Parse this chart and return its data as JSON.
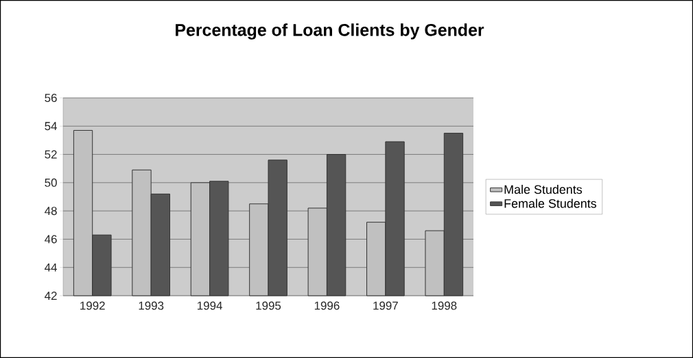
{
  "chart_data": {
    "type": "bar",
    "title": "Percentage of Loan Clients by Gender",
    "categories": [
      "1992",
      "1993",
      "1994",
      "1995",
      "1996",
      "1997",
      "1998"
    ],
    "series": [
      {
        "name": "Male Students",
        "color": "#c0c0c0",
        "values": [
          53.7,
          50.9,
          50.0,
          48.5,
          48.2,
          47.2,
          46.6
        ]
      },
      {
        "name": "Female Students",
        "color": "#555555",
        "values": [
          46.3,
          49.2,
          50.1,
          51.6,
          52.0,
          52.9,
          53.5
        ]
      }
    ],
    "ylim": [
      42,
      56
    ],
    "yticks": [
      42,
      44,
      46,
      48,
      50,
      52,
      54,
      56
    ],
    "grid": "y",
    "legend": "right"
  }
}
